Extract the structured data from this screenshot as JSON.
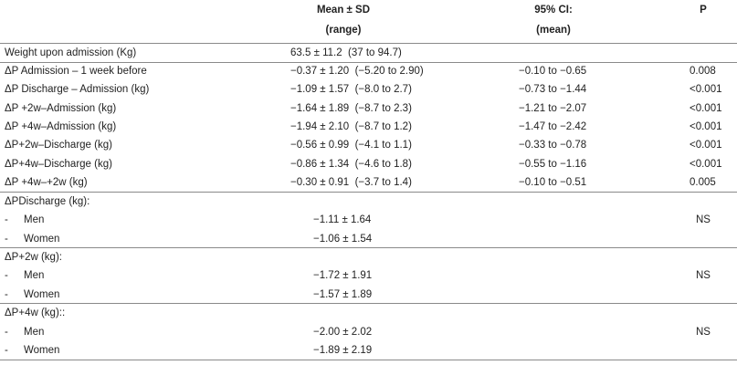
{
  "table": {
    "header": {
      "mean": [
        "Mean ± SD",
        "(range)"
      ],
      "ci": [
        "95% CI:",
        "(mean)"
      ],
      "p": "P"
    },
    "weight_row": {
      "label": "Weight upon admission (Kg)",
      "mean": "63.5 ± 11.2  (37 to 94.7)"
    },
    "rows": [
      {
        "label": "ΔP Admission – 1 week before",
        "mean": "−0.37 ± 1.20  (−5.20 to 2.90)",
        "ci": "−0.10 to −0.65",
        "p": "0.008"
      },
      {
        "label": "ΔP Discharge – Admission (kg)",
        "mean": "−1.09 ± 1.57  (−8.0 to 2.7)",
        "ci": "−0.73 to −1.44",
        "p": "<0.001"
      },
      {
        "label": "ΔP +2w–Admission (kg)",
        "mean": "−1.64 ± 1.89  (−8.7 to 2.3)",
        "ci": "−1.21 to −2.07",
        "p": "<0.001"
      },
      {
        "label": "ΔP +4w–Admission (kg)",
        "mean": "−1.94 ± 2.10  (−8.7 to 1.2)",
        "ci": "−1.47 to −2.42",
        "p": "<0.001"
      },
      {
        "label": "ΔP+2w–Discharge (kg)",
        "mean": "−0.56 ± 0.99  (−4.1 to 1.1)",
        "ci": "−0.33 to −0.78",
        "p": "<0.001"
      },
      {
        "label": "ΔP+4w–Discharge (kg)",
        "mean": "−0.86 ± 1.34  (−4.6 to 1.8)",
        "ci": "−0.55 to −1.16",
        "p": "<0.001"
      },
      {
        "label": "ΔP +4w–+2w (kg)",
        "mean": "−0.30 ± 0.91  (−3.7 to 1.4)",
        "ci": "−0.10 to −0.51",
        "p": "0.005"
      }
    ],
    "groups": [
      {
        "title": "ΔPDischarge (kg):",
        "rows": [
          {
            "dash": "-",
            "label": "Men",
            "value": "−1.11 ± 1.64",
            "p": "NS"
          },
          {
            "dash": "-",
            "label": "Women",
            "value": "−1.06 ± 1.54"
          }
        ]
      },
      {
        "title": "ΔP+2w (kg):",
        "rows": [
          {
            "dash": "-",
            "label": "Men",
            "value": "−1.72 ± 1.91",
            "p": "NS"
          },
          {
            "dash": "-",
            "label": "Women",
            "value": "−1.57 ± 1.89"
          }
        ]
      },
      {
        "title": "ΔP+4w (kg)::",
        "rows": [
          {
            "dash": "-",
            "label": "Men",
            "value": "−2.00 ± 2.02",
            "p": "NS"
          },
          {
            "dash": "-",
            "label": "Women",
            "value": "−1.89 ± 2.19"
          }
        ]
      }
    ]
  }
}
